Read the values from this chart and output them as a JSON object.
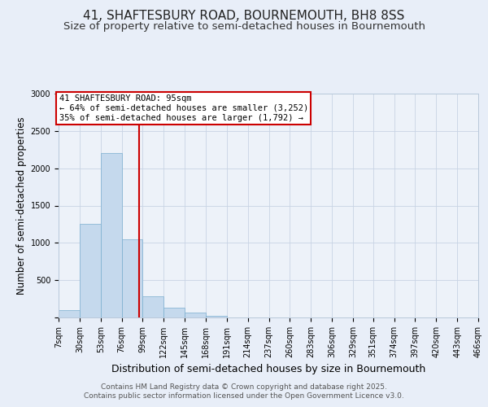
{
  "title1": "41, SHAFTESBURY ROAD, BOURNEMOUTH, BH8 8SS",
  "title2": "Size of property relative to semi-detached houses in Bournemouth",
  "xlabel": "Distribution of semi-detached houses by size in Bournemouth",
  "ylabel": "Number of semi-detached properties",
  "bin_edges": [
    7,
    30,
    53,
    76,
    99,
    122,
    145,
    168,
    191,
    214,
    237,
    260,
    283,
    306,
    329,
    351,
    374,
    397,
    420,
    443,
    466
  ],
  "bar_heights": [
    100,
    1250,
    2200,
    1050,
    280,
    130,
    70,
    20,
    0,
    0,
    0,
    0,
    0,
    0,
    0,
    0,
    0,
    0,
    0,
    0
  ],
  "bar_color": "#c5d9ed",
  "bar_edge_color": "#7aaecf",
  "property_size": 95,
  "vline_color": "#cc0000",
  "annotation_title": "41 SHAFTESBURY ROAD: 95sqm",
  "annotation_line2": "← 64% of semi-detached houses are smaller (3,252)",
  "annotation_line3": "35% of semi-detached houses are larger (1,792) →",
  "annotation_box_color": "#cc0000",
  "annotation_fill": "#ffffff",
  "ylim": [
    0,
    3000
  ],
  "yticks": [
    0,
    500,
    1000,
    1500,
    2000,
    2500,
    3000
  ],
  "grid_color": "#c8d4e4",
  "bg_color": "#e8eef8",
  "plot_bg_color": "#edf2f9",
  "footer1": "Contains HM Land Registry data © Crown copyright and database right 2025.",
  "footer2": "Contains public sector information licensed under the Open Government Licence v3.0.",
  "title1_fontsize": 11,
  "title2_fontsize": 9.5,
  "xlabel_fontsize": 9,
  "ylabel_fontsize": 8.5,
  "tick_fontsize": 7,
  "footer_fontsize": 6.5,
  "annotation_fontsize": 7.5
}
